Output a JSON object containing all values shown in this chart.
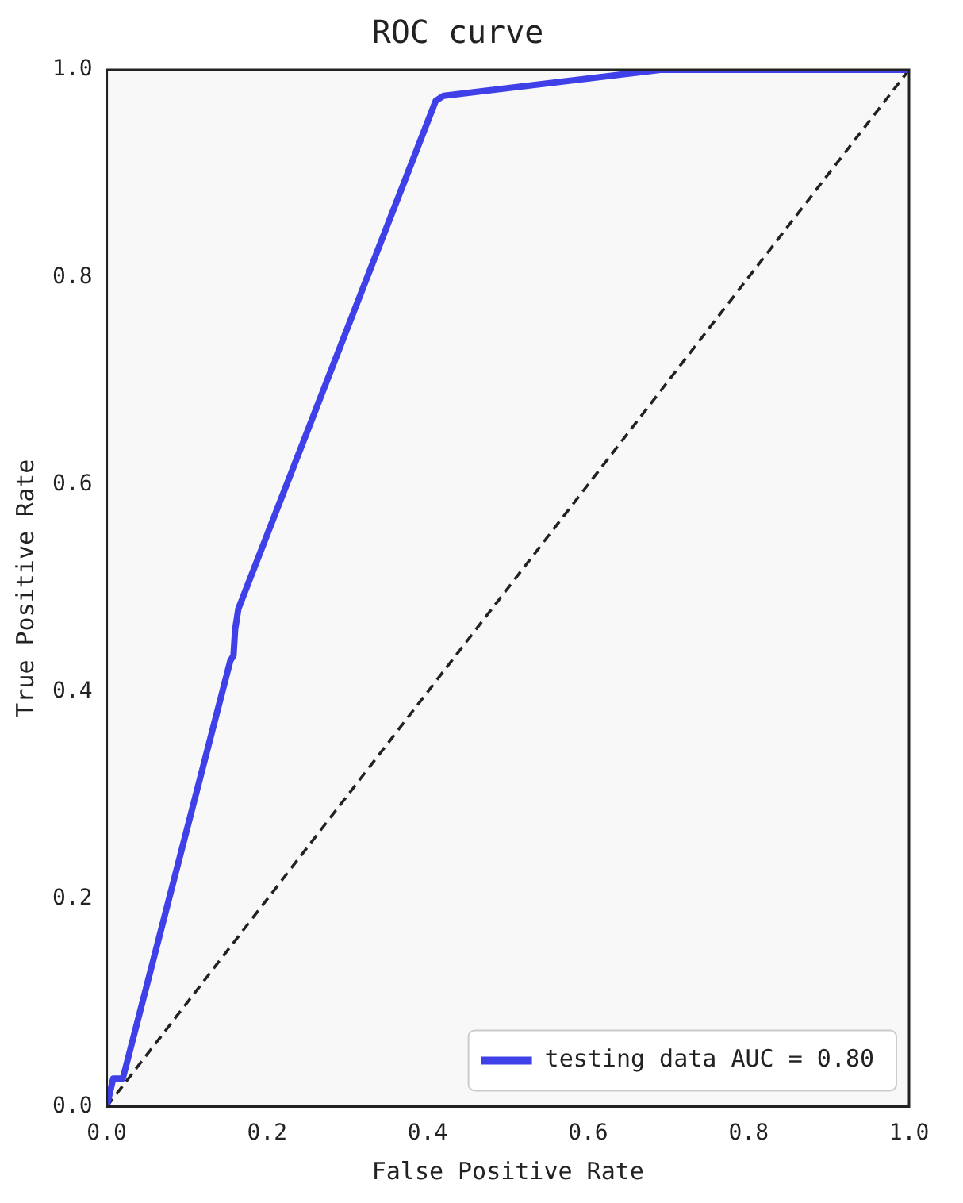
{
  "chart_data": {
    "type": "line",
    "title": "ROC curve",
    "xlabel": "False Positive Rate",
    "ylabel": "True Positive Rate",
    "xlim": [
      0,
      1
    ],
    "ylim": [
      0,
      1
    ],
    "xticks": [
      {
        "value": 0,
        "label": "0.0"
      },
      {
        "value": 0.2,
        "label": "0.2"
      },
      {
        "value": 0.4,
        "label": "0.4"
      },
      {
        "value": 0.6,
        "label": "0.6"
      },
      {
        "value": 0.8,
        "label": "0.8"
      },
      {
        "value": 1,
        "label": "1.0"
      }
    ],
    "yticks": [
      {
        "value": 0,
        "label": "0.0"
      },
      {
        "value": 0.2,
        "label": "0.2"
      },
      {
        "value": 0.4,
        "label": "0.4"
      },
      {
        "value": 0.6,
        "label": "0.6"
      },
      {
        "value": 0.8,
        "label": "0.8"
      },
      {
        "value": 1,
        "label": "1.0"
      }
    ],
    "series": [
      {
        "name": "testing data AUC = 0.80",
        "color": "#4040e8",
        "x": [
          0,
          0.008,
          0.02,
          0.154,
          0.158,
          0.16,
          0.164,
          0.41,
          0.42,
          0.69,
          1
        ],
        "values": [
          0,
          0.027,
          0.027,
          0.43,
          0.435,
          0.46,
          0.48,
          0.97,
          0.975,
          1,
          1
        ]
      },
      {
        "color": "#222222",
        "line_style": "dashed",
        "x": [
          0,
          1
        ],
        "values": [
          0,
          1
        ]
      }
    ],
    "legend": "bottom right",
    "grid": false,
    "marker": "none"
  }
}
